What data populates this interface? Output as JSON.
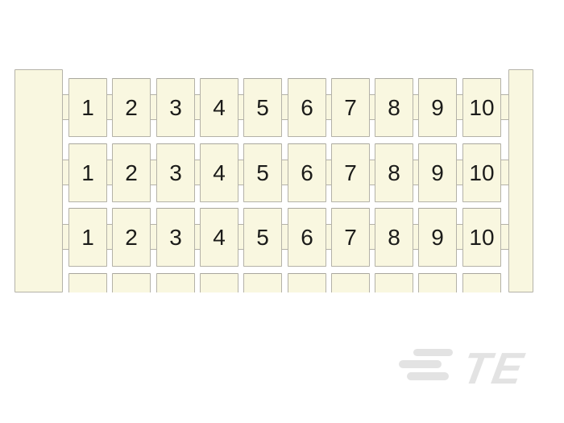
{
  "page": {
    "background": "#ffffff"
  },
  "product": {
    "type": "terminal-marker-strip-photo",
    "cell_labels": [
      "1",
      "2",
      "3",
      "4",
      "5",
      "6",
      "7",
      "8",
      "9",
      "10"
    ],
    "rows_with_labels": 3,
    "partial_fourth_row": true,
    "colors": {
      "fill": "#f9f7e0",
      "border": "#b4b2a8",
      "digit": "#1c1c1a"
    }
  },
  "logo": {
    "text": "TE",
    "color": "#e3e3e3"
  }
}
